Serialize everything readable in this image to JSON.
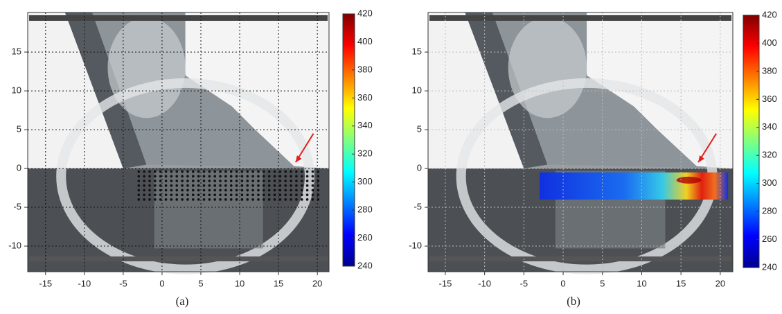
{
  "chart_data": [
    {
      "type": "image",
      "xlim": [
        -17.3,
        21.5
      ],
      "ylim": [
        -13.3,
        20.1
      ],
      "xticks": [
        -15,
        -10,
        -5,
        0,
        5,
        10,
        15,
        20
      ],
      "yticks": [
        -10,
        -5,
        0,
        5,
        10,
        15
      ],
      "grid": true,
      "grid_color": "#111111",
      "colormap": "jet",
      "colorbar_lim": [
        240,
        420
      ],
      "colorbar_ticks": [
        240,
        260,
        280,
        300,
        320,
        340,
        360,
        380,
        400,
        420
      ],
      "caption": "(a)"
    },
    {
      "type": "image",
      "xlim": [
        -17.2,
        21.6
      ],
      "ylim": [
        -13.3,
        20.1
      ],
      "xticks": [
        -15,
        -10,
        -5,
        0,
        5,
        10,
        15,
        20
      ],
      "yticks": [
        -10,
        -5,
        0,
        5,
        10,
        15
      ],
      "grid": true,
      "grid_color": "#bbbbbb",
      "colormap": "jet",
      "colorbar_lim": [
        240,
        420
      ],
      "colorbar_ticks": [
        240,
        260,
        280,
        300,
        320,
        340,
        360,
        380,
        400,
        420
      ],
      "caption": "(b)"
    }
  ]
}
